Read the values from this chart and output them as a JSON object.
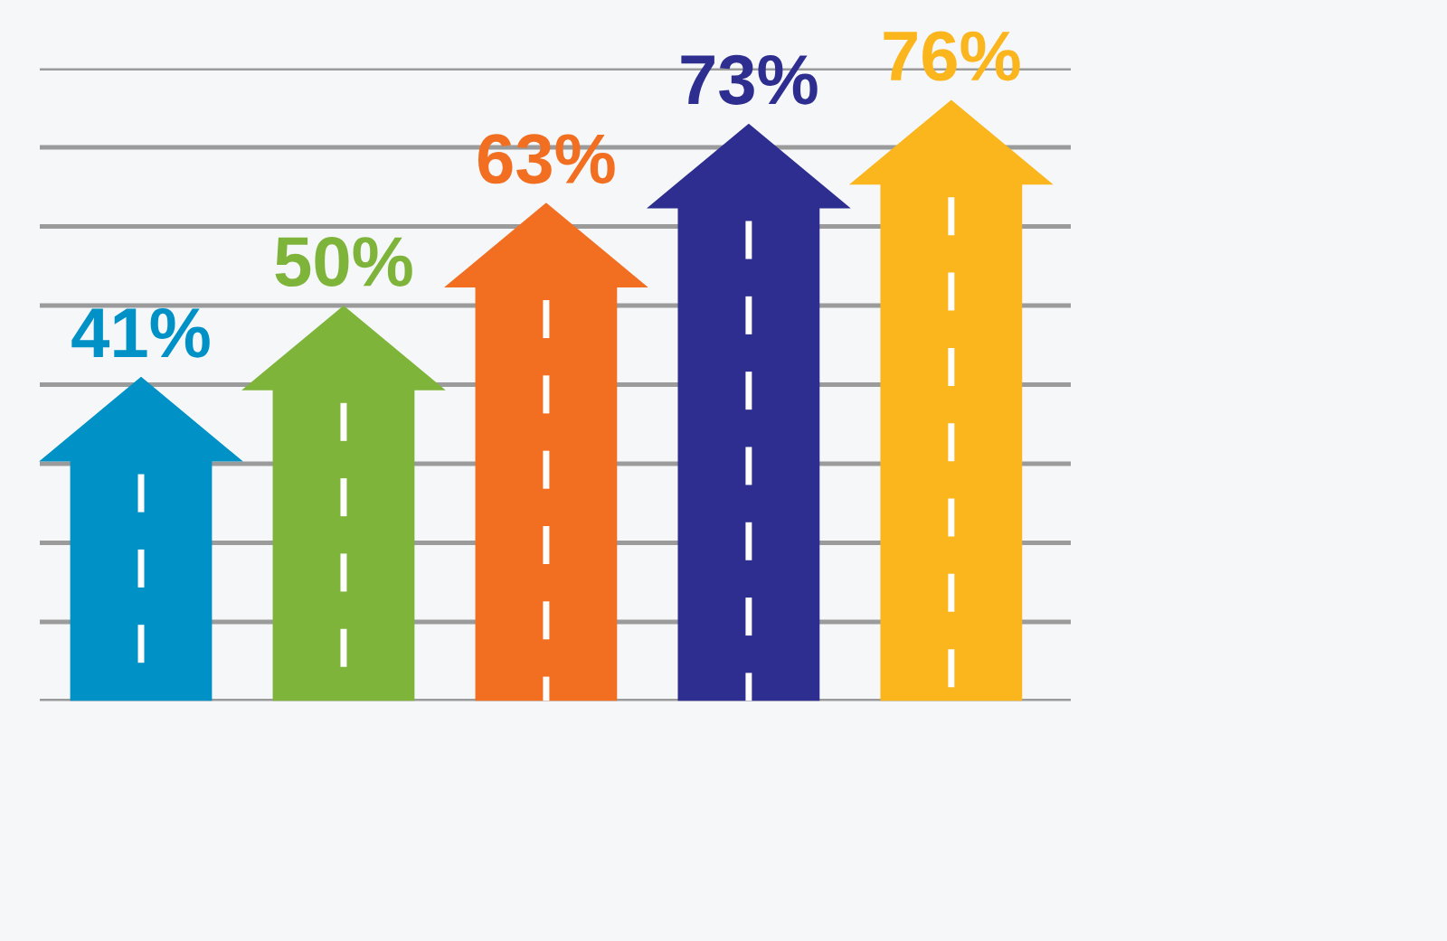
{
  "chart_data": {
    "type": "bar",
    "categories": [
      null,
      null,
      null,
      null,
      null
    ],
    "values": [
      41,
      50,
      63,
      73,
      76
    ],
    "colors": [
      "#0091c7",
      "#7fb43b",
      "#f26f21",
      "#2e2e90",
      "#fbb51d"
    ],
    "value_labels": [
      "41%",
      "50%",
      "63%",
      "73%",
      "76%"
    ],
    "grid": "y"
  }
}
